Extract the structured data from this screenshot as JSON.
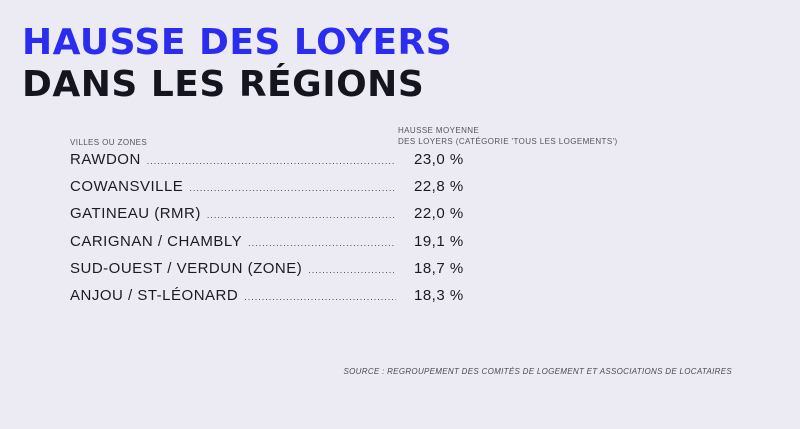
{
  "title": {
    "line1": "HAUSSE DES LOYERS",
    "line2": "DANS LES RÉGIONS"
  },
  "headers": {
    "left": "VILLES OU ZONES",
    "right_line1": "HAUSSE MOYENNE",
    "right_line2": "DES LOYERS (CATÉGORIE 'TOUS LES LOGEMENTS')"
  },
  "rows": [
    {
      "label": "RAWDON",
      "value": "23,0 %"
    },
    {
      "label": "COWANSVILLE",
      "value": "22,8 %"
    },
    {
      "label": "GATINEAU (RMR)",
      "value": "22,0 %"
    },
    {
      "label": "CARIGNAN / CHAMBLY",
      "value": "19,1 %"
    },
    {
      "label": "SUD-OUEST / VERDUN (ZONE)",
      "value": "18,7 %"
    },
    {
      "label": "ANJOU / ST-LÉONARD",
      "value": "18,3 %"
    }
  ],
  "source": "SOURCE : REGROUPEMENT DES COMITÉS DE LOGEMENT ET ASSOCIATIONS DE LOCATAIRES",
  "colors": {
    "background": "#ecebf3",
    "accent": "#2a2cf0",
    "text": "#15151f"
  }
}
